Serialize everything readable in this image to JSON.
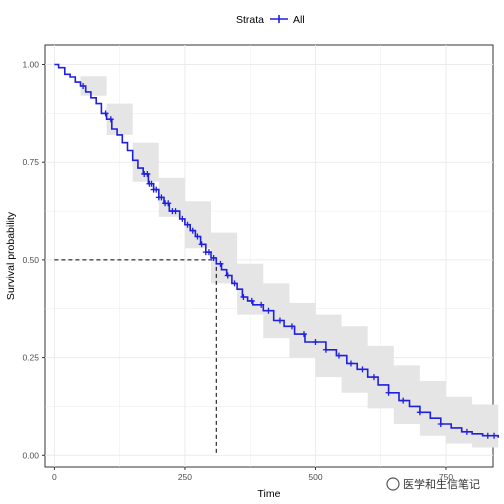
{
  "chart_data": {
    "type": "line",
    "subtype": "kaplan-meier",
    "xlabel": "Time",
    "ylabel": "Survival probability",
    "xlim": [
      -18,
      840
    ],
    "ylim": [
      -0.03,
      1.05
    ],
    "x_ticks": [
      0,
      250,
      500,
      750
    ],
    "x_tick_labels": [
      "0",
      "250",
      "500",
      "750"
    ],
    "y_ticks": [
      0,
      0.25,
      0.5,
      0.75,
      1.0
    ],
    "y_tick_labels": [
      "0.00",
      "0.25",
      "0.50",
      "0.75",
      "1.00"
    ],
    "grid": true,
    "legend": {
      "title": "Strata",
      "position": "top",
      "entries": [
        "All"
      ]
    },
    "colors": {
      "line": "#1f1fe0",
      "band": "#e5e5e5",
      "grid": "#ebebeb"
    },
    "series": [
      {
        "name": "All",
        "steps": [
          [
            0,
            1.0
          ],
          [
            8,
            0.992
          ],
          [
            20,
            0.975
          ],
          [
            30,
            0.968
          ],
          [
            40,
            0.955
          ],
          [
            50,
            0.945
          ],
          [
            60,
            0.93
          ],
          [
            70,
            0.915
          ],
          [
            80,
            0.9
          ],
          [
            90,
            0.875
          ],
          [
            100,
            0.86
          ],
          [
            110,
            0.835
          ],
          [
            120,
            0.82
          ],
          [
            130,
            0.8
          ],
          [
            140,
            0.78
          ],
          [
            150,
            0.755
          ],
          [
            160,
            0.735
          ],
          [
            170,
            0.72
          ],
          [
            180,
            0.695
          ],
          [
            190,
            0.68
          ],
          [
            200,
            0.66
          ],
          [
            210,
            0.645
          ],
          [
            220,
            0.625
          ],
          [
            240,
            0.605
          ],
          [
            250,
            0.59
          ],
          [
            260,
            0.575
          ],
          [
            270,
            0.56
          ],
          [
            280,
            0.54
          ],
          [
            290,
            0.52
          ],
          [
            300,
            0.505
          ],
          [
            310,
            0.49
          ],
          [
            320,
            0.475
          ],
          [
            330,
            0.46
          ],
          [
            340,
            0.44
          ],
          [
            350,
            0.425
          ],
          [
            360,
            0.405
          ],
          [
            370,
            0.395
          ],
          [
            380,
            0.385
          ],
          [
            400,
            0.37
          ],
          [
            420,
            0.345
          ],
          [
            440,
            0.33
          ],
          [
            460,
            0.31
          ],
          [
            480,
            0.29
          ],
          [
            520,
            0.27
          ],
          [
            540,
            0.255
          ],
          [
            560,
            0.235
          ],
          [
            580,
            0.22
          ],
          [
            600,
            0.2
          ],
          [
            620,
            0.18
          ],
          [
            640,
            0.16
          ],
          [
            660,
            0.14
          ],
          [
            680,
            0.125
          ],
          [
            700,
            0.11
          ],
          [
            720,
            0.095
          ],
          [
            740,
            0.08
          ],
          [
            760,
            0.07
          ],
          [
            780,
            0.06
          ],
          [
            800,
            0.055
          ],
          [
            820,
            0.05
          ],
          [
            850,
            0.045
          ]
        ],
        "censored_times": [
          55,
          98,
          108,
          172,
          178,
          182,
          186,
          190,
          195,
          200,
          205,
          212,
          218,
          226,
          232,
          245,
          255,
          265,
          274,
          282,
          290,
          296,
          305,
          318,
          332,
          345,
          362,
          378,
          396,
          410,
          432,
          455,
          478,
          500,
          520,
          545,
          568,
          590,
          612,
          640,
          668,
          700,
          740,
          790,
          830,
          842
        ],
        "ci_upper": [
          [
            0,
            1.0
          ],
          [
            50,
            0.97
          ],
          [
            100,
            0.9
          ],
          [
            150,
            0.8
          ],
          [
            200,
            0.71
          ],
          [
            250,
            0.65
          ],
          [
            300,
            0.57
          ],
          [
            350,
            0.49
          ],
          [
            400,
            0.44
          ],
          [
            450,
            0.39
          ],
          [
            500,
            0.36
          ],
          [
            550,
            0.33
          ],
          [
            600,
            0.28
          ],
          [
            650,
            0.23
          ],
          [
            700,
            0.19
          ],
          [
            750,
            0.15
          ],
          [
            800,
            0.13
          ],
          [
            850,
            0.13
          ]
        ],
        "ci_lower": [
          [
            0,
            1.0
          ],
          [
            50,
            0.92
          ],
          [
            100,
            0.82
          ],
          [
            150,
            0.7
          ],
          [
            200,
            0.61
          ],
          [
            250,
            0.53
          ],
          [
            300,
            0.44
          ],
          [
            350,
            0.36
          ],
          [
            400,
            0.3
          ],
          [
            450,
            0.25
          ],
          [
            500,
            0.2
          ],
          [
            550,
            0.16
          ],
          [
            600,
            0.12
          ],
          [
            650,
            0.08
          ],
          [
            700,
            0.05
          ],
          [
            750,
            0.03
          ],
          [
            800,
            0.02
          ],
          [
            850,
            0.015
          ]
        ]
      }
    ],
    "median_survival": {
      "time": 310,
      "probability": 0.5
    },
    "watermark": "医学和生信笔记"
  }
}
